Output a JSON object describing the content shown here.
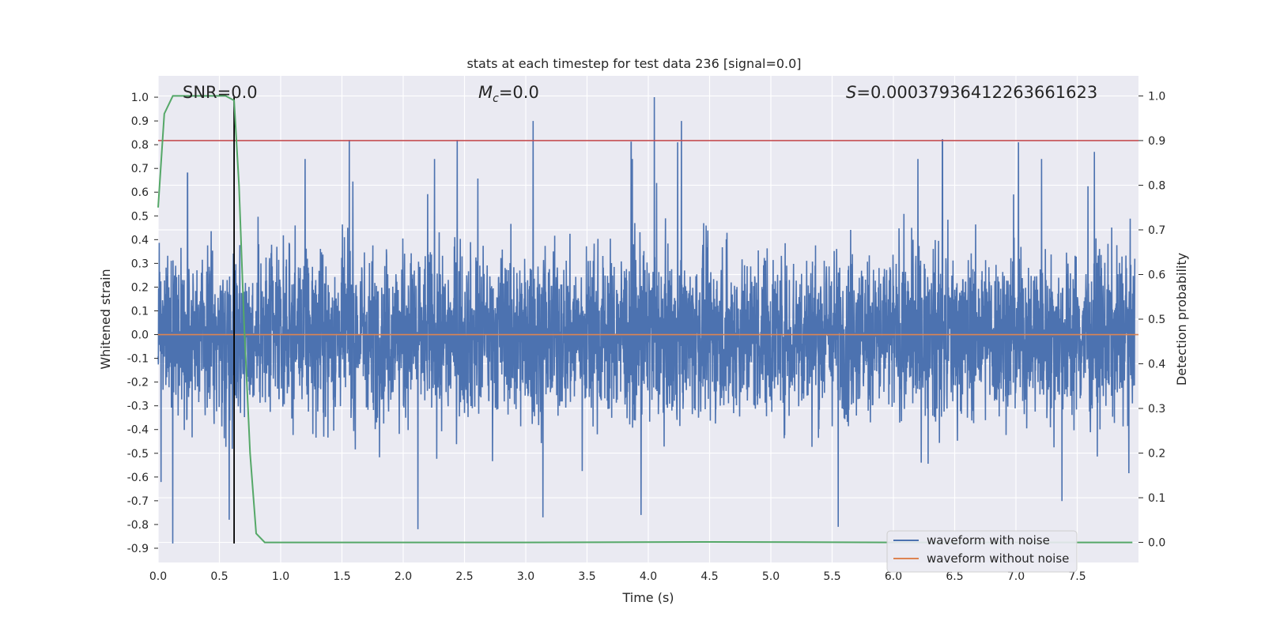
{
  "chart_data": {
    "type": "line",
    "title": "stats at each timestep for test data 236 [signal=0.0]",
    "xlabel": "Time (s)",
    "ylabel_left": "Whitened strain",
    "ylabel_right": "Detection probability",
    "xlim": [
      0.0,
      8.0
    ],
    "ylim_left": [
      -0.96,
      1.09
    ],
    "ylim_right": [
      -0.045,
      1.045
    ],
    "x_ticks": [
      "0.0",
      "0.5",
      "1.0",
      "1.5",
      "2.0",
      "2.5",
      "3.0",
      "3.5",
      "4.0",
      "4.5",
      "5.0",
      "5.5",
      "6.0",
      "6.5",
      "7.0",
      "7.5"
    ],
    "left_ticks": [
      "1.0",
      "0.9",
      "0.8",
      "0.7",
      "0.6",
      "0.5",
      "0.4",
      "0.3",
      "0.2",
      "0.1",
      "0.0",
      "-0.1",
      "-0.2",
      "-0.3",
      "-0.4",
      "-0.5",
      "-0.6",
      "-0.7",
      "-0.8",
      "-0.9"
    ],
    "right_ticks": [
      "1.0",
      "0.9",
      "0.8",
      "0.7",
      "0.6",
      "0.5",
      "0.4",
      "0.3",
      "0.2",
      "0.1",
      "0.0"
    ],
    "grid": true,
    "legend_position": "lower-right",
    "annotations": {
      "snr": "SNR=0.0",
      "mc_symbol": "M",
      "mc_sub": "c",
      "mc_value": "=0.0",
      "s_symbol": "S",
      "s_value": "=0.00037936412263661623"
    },
    "series": [
      {
        "name": "waveform with noise",
        "color": "#4c72b0",
        "axis": "left",
        "description_values": "dense noise, amplitude mostly within ±0.5, peaks ~1.0 at t≈4.05, trough ~-0.88 at t≈0.12"
      },
      {
        "name": "waveform without noise",
        "color": "#dd8452",
        "axis": "left",
        "x": [
          0.0,
          8.0
        ],
        "y": [
          0.0,
          0.0
        ]
      },
      {
        "name": "",
        "color": "#55a868",
        "axis": "right",
        "x": [
          0.0,
          0.05,
          0.12,
          0.25,
          0.4,
          0.55,
          0.62,
          0.66,
          0.7,
          0.75,
          0.8,
          0.87,
          1.5,
          3.0,
          4.5,
          6.0,
          7.5,
          7.95
        ],
        "y": [
          0.75,
          0.96,
          1.0,
          1.0,
          1.0,
          1.0,
          0.99,
          0.8,
          0.5,
          0.2,
          0.02,
          0.0,
          0.0,
          0.0,
          0.001,
          0.0,
          0.0,
          0.0
        ]
      }
    ],
    "hlines": [
      {
        "axis": "right",
        "y": 0.9,
        "color": "#c44e52"
      }
    ],
    "vlines": [
      {
        "x": 0.62,
        "y_range": [
          -0.88,
          1.0
        ],
        "color": "#000000"
      }
    ],
    "colors": {
      "background": "#eaeaf2",
      "grid": "#ffffff",
      "noise": "#4c72b0",
      "clean": "#dd8452",
      "probability": "#55a868",
      "threshold": "#c44e52",
      "marker": "#000000"
    }
  },
  "legend": {
    "items": [
      {
        "label": "waveform with noise",
        "color": "#4c72b0"
      },
      {
        "label": "waveform without noise",
        "color": "#dd8452"
      }
    ]
  }
}
